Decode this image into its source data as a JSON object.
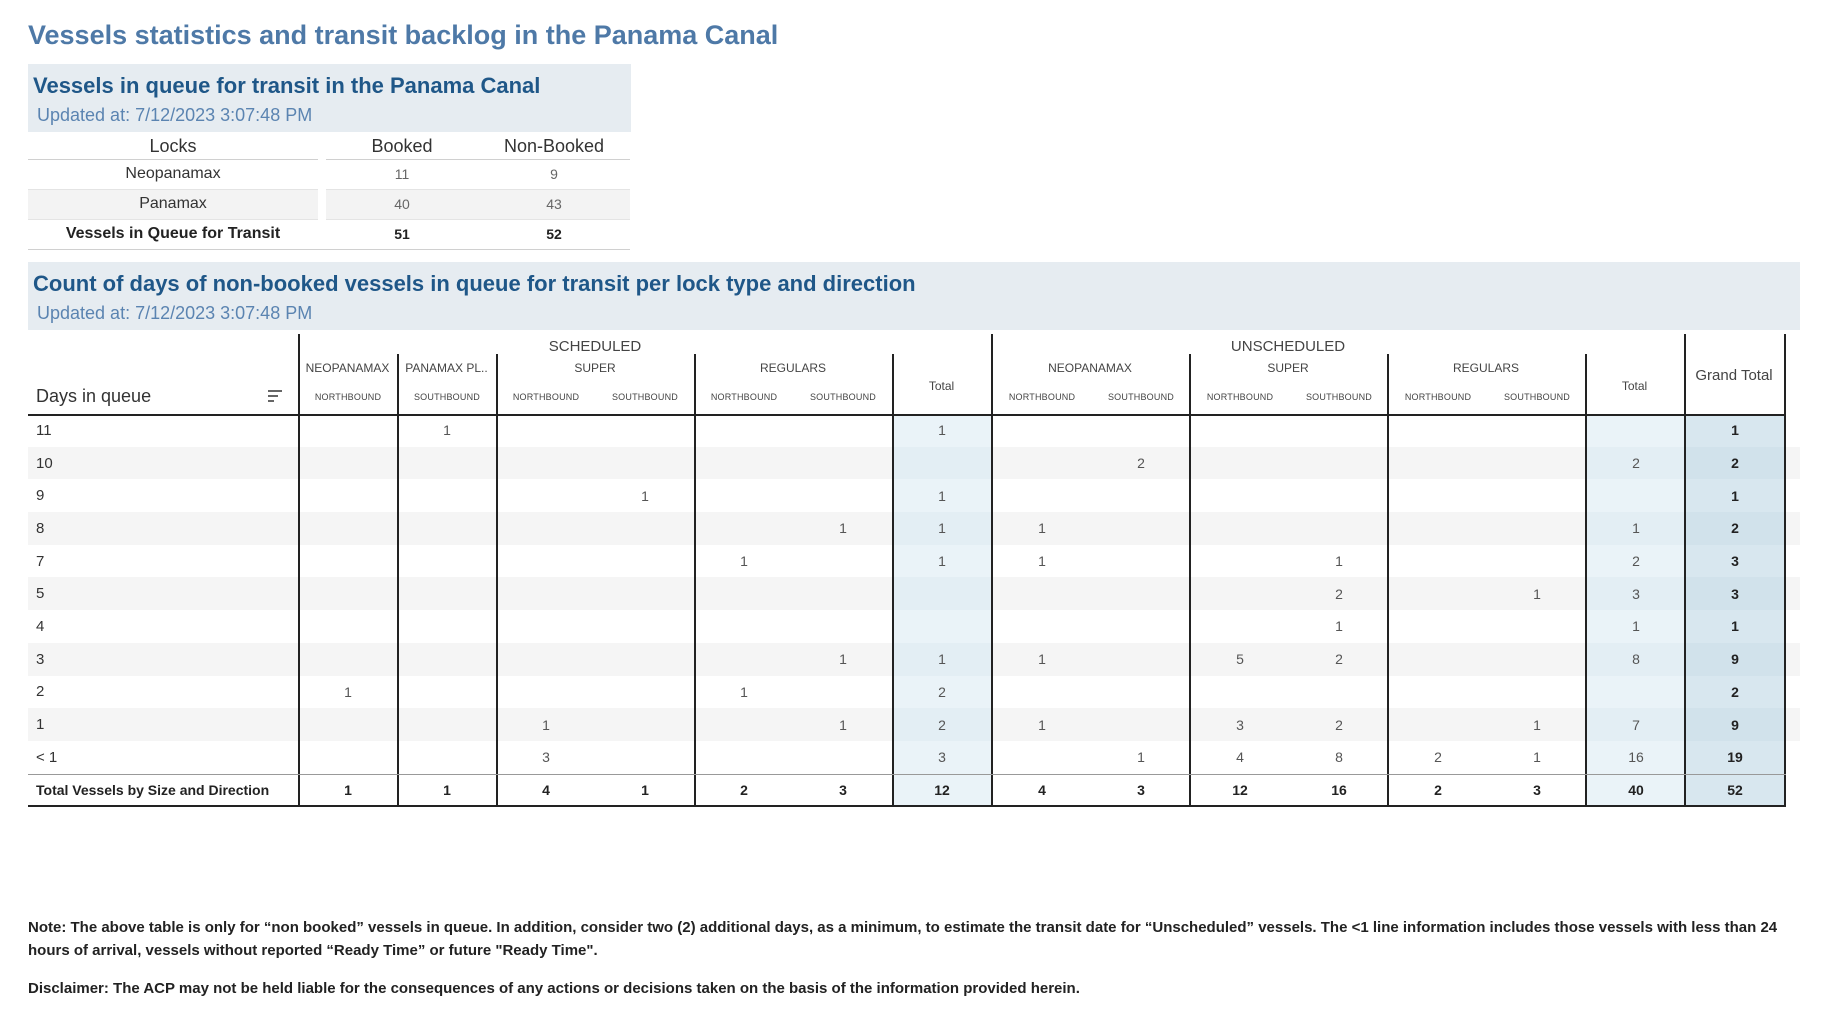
{
  "page_title": "Vessels statistics and transit backlog in the Panama Canal",
  "panel1": {
    "title": "Vessels in queue for transit in the Panama Canal",
    "updated": "Updated at:  7/12/2023 3:07:48 PM",
    "headers": [
      "Locks",
      "Booked",
      "Non-Booked"
    ],
    "rows": [
      {
        "lock": "Neopanamax",
        "booked": "11",
        "non_booked": "9"
      },
      {
        "lock": "Panamax",
        "booked": "40",
        "non_booked": "43"
      }
    ],
    "total": {
      "lock": "Vessels in Queue for Transit",
      "booked": "51",
      "non_booked": "52"
    }
  },
  "panel2": {
    "title": "Count of days of non-booked vessels in queue for transit per lock type and direction",
    "updated": "Updated at:  7/12/2023 3:07:48 PM",
    "days_label": "Days in queue",
    "groups": {
      "scheduled": "SCHEDULED",
      "unscheduled": "UNSCHEDULED",
      "neopanamax": "NEOPANAMAX",
      "panamax_pl": "PANAMAX PL..",
      "super": "SUPER",
      "regulars": "REGULARS",
      "total": "Total",
      "grand_total": "Grand Total",
      "northbound": "NORTHBOUND",
      "southbound": "SOUTHBOUND"
    },
    "rows": [
      {
        "day": "11",
        "v": [
          "",
          "1",
          "",
          "",
          "",
          "",
          "1",
          "",
          "",
          "",
          "",
          "",
          "",
          "",
          "1"
        ]
      },
      {
        "day": "10",
        "v": [
          "",
          "",
          "",
          "",
          "",
          "",
          "",
          "",
          "2",
          "",
          "",
          "",
          "",
          "2",
          "2"
        ]
      },
      {
        "day": "9",
        "v": [
          "",
          "",
          "",
          "1",
          "",
          "",
          "1",
          "",
          "",
          "",
          "",
          "",
          "",
          "",
          "1"
        ]
      },
      {
        "day": "8",
        "v": [
          "",
          "",
          "",
          "",
          "",
          "1",
          "1",
          "1",
          "",
          "",
          "",
          "",
          "",
          "1",
          "2"
        ]
      },
      {
        "day": "7",
        "v": [
          "",
          "",
          "",
          "",
          "1",
          "",
          "1",
          "1",
          "",
          "",
          "1",
          "",
          "",
          "2",
          "3"
        ]
      },
      {
        "day": "5",
        "v": [
          "",
          "",
          "",
          "",
          "",
          "",
          "",
          "",
          "",
          "",
          "2",
          "",
          "1",
          "3",
          "3"
        ]
      },
      {
        "day": "4",
        "v": [
          "",
          "",
          "",
          "",
          "",
          "",
          "",
          "",
          "",
          "",
          "1",
          "",
          "",
          "1",
          "1"
        ]
      },
      {
        "day": "3",
        "v": [
          "",
          "",
          "",
          "",
          "",
          "1",
          "1",
          "1",
          "",
          "5",
          "2",
          "",
          "",
          "8",
          "9"
        ]
      },
      {
        "day": "2",
        "v": [
          "1",
          "",
          "",
          "",
          "1",
          "",
          "2",
          "",
          "",
          "",
          "",
          "",
          "",
          "",
          "2"
        ]
      },
      {
        "day": "1",
        "v": [
          "",
          "",
          "1",
          "",
          "",
          "1",
          "2",
          "1",
          "",
          "3",
          "2",
          "",
          "1",
          "7",
          "9"
        ]
      },
      {
        "day": "< 1",
        "v": [
          "",
          "",
          "3",
          "",
          "",
          "",
          "3",
          "",
          "1",
          "4",
          "8",
          "2",
          "1",
          "16",
          "19"
        ]
      }
    ],
    "total_row": {
      "day": "Total Vessels by Size and Direction",
      "v": [
        "1",
        "1",
        "4",
        "1",
        "2",
        "3",
        "12",
        "4",
        "3",
        "12",
        "16",
        "2",
        "3",
        "40",
        "52"
      ]
    }
  },
  "note": "Note:  The above table is only for “non booked” vessels in queue. In addition, consider two (2) additional days, as a minimum, to estimate the transit date for “Unscheduled” vessels.  The <1 line information includes those vessels with less than 24 hours of arrival, vessels without reported “Ready Time” or future \"Ready Time\".",
  "disclaimer": "Disclaimer: The ACP may not be held liable for the consequences of any actions or decisions taken on the basis of the information provided herein."
}
